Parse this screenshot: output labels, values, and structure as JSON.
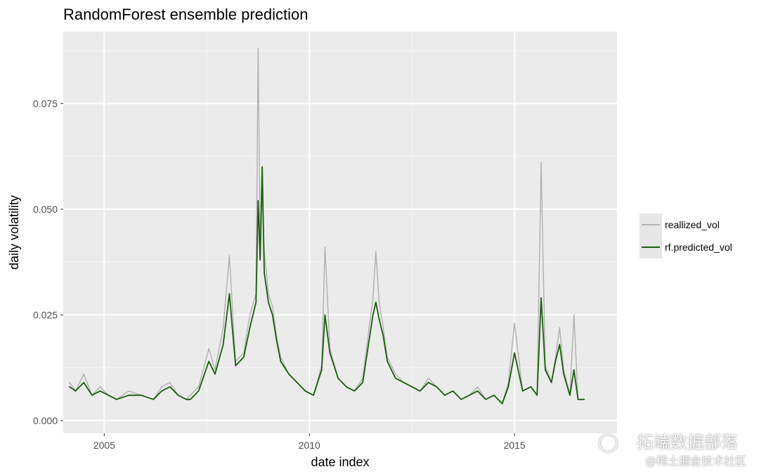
{
  "chart_data": {
    "type": "line",
    "title": "RandomForest ensemble prediction",
    "xlabel": "date index",
    "ylabel": "daily volatility",
    "xlim": [
      2004.0,
      2017.5
    ],
    "ylim": [
      -0.003,
      0.092
    ],
    "x_ticks": [
      "2005",
      "2010",
      "2015"
    ],
    "x_tick_values": [
      2005,
      2010,
      2015
    ],
    "y_ticks": [
      "0.000",
      "0.025",
      "0.050",
      "0.075"
    ],
    "y_tick_values": [
      0.0,
      0.025,
      0.05,
      0.075
    ],
    "grid": true,
    "legend_position": "right",
    "series": [
      {
        "name": "reallized_vol",
        "color": "#b3b3b3",
        "x": [
          2004.15,
          2004.3,
          2004.5,
          2004.7,
          2004.9,
          2005.1,
          2005.3,
          2005.6,
          2005.9,
          2006.2,
          2006.4,
          2006.6,
          2006.8,
          2007.0,
          2007.1,
          2007.3,
          2007.55,
          2007.7,
          2007.9,
          2008.05,
          2008.2,
          2008.4,
          2008.55,
          2008.7,
          2008.75,
          2008.8,
          2008.85,
          2008.9,
          2009.0,
          2009.1,
          2009.2,
          2009.3,
          2009.5,
          2009.7,
          2009.9,
          2010.1,
          2010.3,
          2010.38,
          2010.5,
          2010.7,
          2010.9,
          2011.1,
          2011.3,
          2011.55,
          2011.62,
          2011.7,
          2011.8,
          2011.9,
          2012.1,
          2012.3,
          2012.5,
          2012.7,
          2012.9,
          2013.1,
          2013.3,
          2013.5,
          2013.7,
          2013.9,
          2014.1,
          2014.3,
          2014.5,
          2014.7,
          2014.85,
          2015.0,
          2015.2,
          2015.4,
          2015.55,
          2015.65,
          2015.75,
          2015.9,
          2016.0,
          2016.1,
          2016.2,
          2016.35,
          2016.45,
          2016.55,
          2016.7
        ],
        "values": [
          0.009,
          0.007,
          0.011,
          0.006,
          0.008,
          0.006,
          0.005,
          0.007,
          0.006,
          0.005,
          0.008,
          0.009,
          0.006,
          0.005,
          0.006,
          0.008,
          0.017,
          0.012,
          0.022,
          0.039,
          0.014,
          0.016,
          0.025,
          0.03,
          0.088,
          0.041,
          0.055,
          0.04,
          0.03,
          0.027,
          0.02,
          0.015,
          0.011,
          0.009,
          0.007,
          0.006,
          0.013,
          0.041,
          0.017,
          0.01,
          0.008,
          0.007,
          0.01,
          0.029,
          0.04,
          0.028,
          0.022,
          0.015,
          0.011,
          0.009,
          0.008,
          0.007,
          0.01,
          0.008,
          0.006,
          0.007,
          0.005,
          0.006,
          0.008,
          0.005,
          0.006,
          0.004,
          0.009,
          0.023,
          0.007,
          0.008,
          0.006,
          0.061,
          0.013,
          0.009,
          0.015,
          0.022,
          0.012,
          0.006,
          0.025,
          0.005,
          0.005
        ]
      },
      {
        "name": "rf.predicted_vol",
        "color": "#1a5e0c",
        "x": [
          2004.15,
          2004.3,
          2004.5,
          2004.7,
          2004.9,
          2005.1,
          2005.3,
          2005.6,
          2005.9,
          2006.2,
          2006.4,
          2006.6,
          2006.8,
          2007.0,
          2007.1,
          2007.3,
          2007.55,
          2007.7,
          2007.9,
          2008.05,
          2008.2,
          2008.4,
          2008.55,
          2008.7,
          2008.75,
          2008.8,
          2008.85,
          2008.9,
          2009.0,
          2009.1,
          2009.2,
          2009.3,
          2009.5,
          2009.7,
          2009.9,
          2010.1,
          2010.3,
          2010.38,
          2010.5,
          2010.7,
          2010.9,
          2011.1,
          2011.3,
          2011.55,
          2011.62,
          2011.7,
          2011.8,
          2011.9,
          2012.1,
          2012.3,
          2012.5,
          2012.7,
          2012.9,
          2013.1,
          2013.3,
          2013.5,
          2013.7,
          2013.9,
          2014.1,
          2014.3,
          2014.5,
          2014.7,
          2014.85,
          2015.0,
          2015.2,
          2015.4,
          2015.55,
          2015.65,
          2015.75,
          2015.9,
          2016.0,
          2016.1,
          2016.2,
          2016.35,
          2016.45,
          2016.55,
          2016.7
        ],
        "values": [
          0.008,
          0.007,
          0.009,
          0.006,
          0.007,
          0.006,
          0.005,
          0.006,
          0.006,
          0.005,
          0.007,
          0.008,
          0.006,
          0.005,
          0.005,
          0.007,
          0.014,
          0.011,
          0.018,
          0.03,
          0.013,
          0.015,
          0.022,
          0.028,
          0.052,
          0.038,
          0.06,
          0.035,
          0.028,
          0.025,
          0.019,
          0.014,
          0.011,
          0.009,
          0.007,
          0.006,
          0.012,
          0.025,
          0.016,
          0.01,
          0.008,
          0.007,
          0.009,
          0.025,
          0.028,
          0.024,
          0.02,
          0.014,
          0.01,
          0.009,
          0.008,
          0.007,
          0.009,
          0.008,
          0.006,
          0.007,
          0.005,
          0.006,
          0.007,
          0.005,
          0.006,
          0.004,
          0.008,
          0.016,
          0.007,
          0.008,
          0.006,
          0.029,
          0.012,
          0.009,
          0.014,
          0.018,
          0.011,
          0.006,
          0.012,
          0.005,
          0.005
        ]
      }
    ]
  },
  "watermark": {
    "main": "拓端数据部落",
    "sub": "@稀土掘金技术社区"
  }
}
